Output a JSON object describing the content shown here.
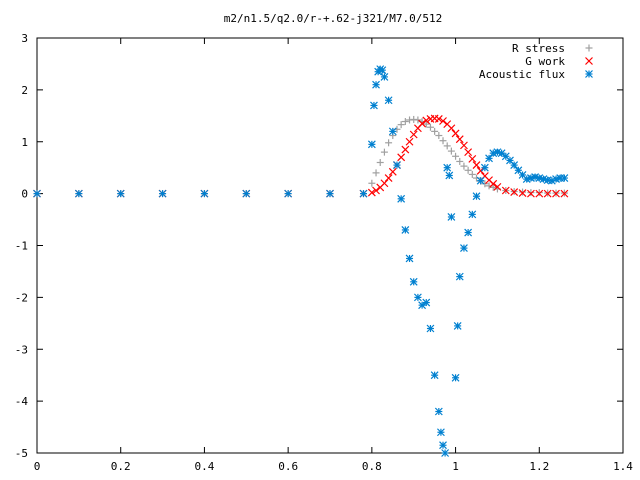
{
  "chart_data": {
    "type": "scatter",
    "title": "m2/n1.5/q2.0/r-+.62-j321/M7.0/512",
    "xlabel": "",
    "ylabel": "",
    "xlim": [
      0,
      1.4
    ],
    "ylim": [
      -5,
      3
    ],
    "xticks": [
      "0",
      "0.2",
      "0.4",
      "0.6",
      "0.8",
      "1",
      "1.2",
      "1.4"
    ],
    "yticks": [
      "3",
      "2",
      "1",
      "0",
      "-1",
      "-2",
      "-3",
      "-4",
      "-5"
    ],
    "grid": false,
    "legend_position": "top-right",
    "series": [
      {
        "name": "R stress",
        "marker": "plus",
        "color": "#a0a0a0",
        "x": [
          0.0,
          0.1,
          0.2,
          0.3,
          0.4,
          0.5,
          0.6,
          0.7,
          0.78,
          0.8,
          0.81,
          0.82,
          0.83,
          0.84,
          0.85,
          0.86,
          0.87,
          0.88,
          0.89,
          0.9,
          0.91,
          0.92,
          0.93,
          0.94,
          0.95,
          0.96,
          0.97,
          0.98,
          0.99,
          1.0,
          1.01,
          1.02,
          1.03,
          1.04,
          1.05,
          1.06,
          1.07,
          1.08,
          1.09,
          1.1,
          1.12,
          1.14,
          1.16,
          1.18,
          1.2,
          1.22,
          1.24,
          1.26
        ],
        "y": [
          0,
          0,
          0,
          0,
          0,
          0,
          0,
          0,
          0,
          0.2,
          0.4,
          0.6,
          0.8,
          0.98,
          1.12,
          1.24,
          1.33,
          1.39,
          1.42,
          1.43,
          1.42,
          1.39,
          1.34,
          1.28,
          1.2,
          1.12,
          1.02,
          0.92,
          0.82,
          0.72,
          0.62,
          0.53,
          0.45,
          0.37,
          0.3,
          0.24,
          0.19,
          0.15,
          0.12,
          0.09,
          0.06,
          0.04,
          0.03,
          0.02,
          0.02,
          0.01,
          0.01,
          0.01
        ]
      },
      {
        "name": "G work",
        "marker": "cross",
        "color": "#ff0000",
        "x": [
          0.0,
          0.1,
          0.2,
          0.3,
          0.4,
          0.5,
          0.6,
          0.7,
          0.78,
          0.8,
          0.81,
          0.82,
          0.83,
          0.84,
          0.85,
          0.86,
          0.87,
          0.88,
          0.89,
          0.9,
          0.91,
          0.92,
          0.93,
          0.94,
          0.95,
          0.96,
          0.97,
          0.98,
          0.99,
          1.0,
          1.01,
          1.02,
          1.03,
          1.04,
          1.05,
          1.06,
          1.07,
          1.08,
          1.09,
          1.1,
          1.12,
          1.14,
          1.16,
          1.18,
          1.2,
          1.22,
          1.24,
          1.26
        ],
        "y": [
          0,
          0,
          0,
          0,
          0,
          0,
          0,
          0,
          0,
          0.02,
          0.06,
          0.12,
          0.2,
          0.3,
          0.42,
          0.55,
          0.7,
          0.85,
          1.0,
          1.14,
          1.26,
          1.35,
          1.41,
          1.44,
          1.45,
          1.44,
          1.4,
          1.34,
          1.26,
          1.16,
          1.05,
          0.93,
          0.8,
          0.67,
          0.55,
          0.44,
          0.34,
          0.26,
          0.19,
          0.13,
          0.06,
          0.03,
          0.01,
          0.0,
          0.0,
          0.0,
          0.0,
          0.0
        ]
      },
      {
        "name": "Acoustic flux",
        "marker": "star",
        "color": "#0080d0",
        "x": [
          0.0,
          0.1,
          0.2,
          0.3,
          0.4,
          0.5,
          0.6,
          0.7,
          0.78,
          0.8,
          0.805,
          0.81,
          0.815,
          0.82,
          0.825,
          0.83,
          0.84,
          0.85,
          0.86,
          0.87,
          0.88,
          0.89,
          0.9,
          0.91,
          0.92,
          0.93,
          0.94,
          0.95,
          0.96,
          0.965,
          0.97,
          0.975,
          0.98,
          0.985,
          0.99,
          1.0,
          1.005,
          1.01,
          1.02,
          1.03,
          1.04,
          1.05,
          1.06,
          1.07,
          1.08,
          1.09,
          1.1,
          1.11,
          1.12,
          1.13,
          1.14,
          1.15,
          1.16,
          1.17,
          1.18,
          1.19,
          1.2,
          1.21,
          1.22,
          1.23,
          1.24,
          1.25,
          1.26
        ],
        "y": [
          0,
          0,
          0,
          0,
          0,
          0,
          0,
          0,
          0,
          0.95,
          1.7,
          2.1,
          2.35,
          2.4,
          2.38,
          2.25,
          1.8,
          1.2,
          0.55,
          -0.1,
          -0.7,
          -1.25,
          -1.7,
          -2.0,
          -2.15,
          -2.1,
          -2.6,
          -3.5,
          -4.2,
          -4.6,
          -4.85,
          -5.0,
          0.5,
          0.35,
          -0.45,
          -3.55,
          -2.55,
          -1.6,
          -1.05,
          -0.75,
          -0.4,
          -0.05,
          0.25,
          0.5,
          0.68,
          0.78,
          0.8,
          0.78,
          0.72,
          0.64,
          0.55,
          0.45,
          0.36,
          0.28,
          0.3,
          0.32,
          0.3,
          0.28,
          0.26,
          0.25,
          0.28,
          0.3,
          0.3
        ]
      }
    ]
  }
}
